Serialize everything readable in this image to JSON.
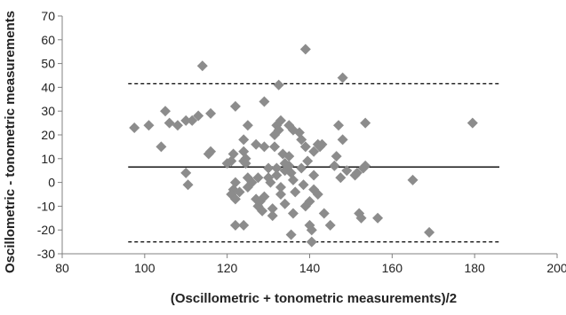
{
  "chart_data": {
    "type": "scatter",
    "title": "",
    "xlabel": "(Oscillometric + tonometric measurements)/2",
    "ylabel": "Oscillometric - tonometric measurements",
    "xlim": [
      80,
      200
    ],
    "ylim": [
      -30,
      70
    ],
    "xticks": [
      80,
      100,
      120,
      140,
      160,
      180,
      200
    ],
    "yticks": [
      -30,
      -20,
      -10,
      0,
      10,
      20,
      30,
      40,
      50,
      60,
      70
    ],
    "grid": false,
    "legend": "none",
    "marker": "diamond",
    "colors": {
      "marker": "#8c8c8c",
      "line": "#000000",
      "axis": "#808080"
    },
    "reference_lines": [
      {
        "kind": "mean",
        "y": 6.5,
        "x_range": [
          96,
          186
        ],
        "style": "solid"
      },
      {
        "kind": "upper-limit",
        "y": 41.5,
        "x_range": [
          96,
          186
        ],
        "style": "dashed"
      },
      {
        "kind": "lower-limit",
        "y": -25,
        "x_range": [
          96,
          186
        ],
        "style": "dashed"
      }
    ],
    "points": [
      [
        97.5,
        23
      ],
      [
        101,
        24
      ],
      [
        104,
        15
      ],
      [
        105,
        30
      ],
      [
        106,
        25
      ],
      [
        108,
        24
      ],
      [
        110,
        26
      ],
      [
        110,
        4
      ],
      [
        110.5,
        -1
      ],
      [
        111.5,
        26
      ],
      [
        113,
        28
      ],
      [
        114,
        49
      ],
      [
        115.5,
        12
      ],
      [
        116,
        13
      ],
      [
        116,
        29
      ],
      [
        120,
        8
      ],
      [
        121,
        9
      ],
      [
        121.5,
        12
      ],
      [
        122,
        32
      ],
      [
        122,
        0
      ],
      [
        121.5,
        -3
      ],
      [
        121,
        -5
      ],
      [
        122,
        -7
      ],
      [
        123,
        -4
      ],
      [
        122,
        -18
      ],
      [
        124,
        -18
      ],
      [
        124,
        18
      ],
      [
        125,
        24
      ],
      [
        124,
        13
      ],
      [
        124.5,
        10
      ],
      [
        124,
        9
      ],
      [
        124.5,
        8
      ],
      [
        125,
        2
      ],
      [
        125,
        -2
      ],
      [
        126,
        0
      ],
      [
        127,
        16
      ],
      [
        127.5,
        2
      ],
      [
        127,
        -7
      ],
      [
        127.5,
        -10
      ],
      [
        128,
        -8
      ],
      [
        128.5,
        -12
      ],
      [
        129,
        15
      ],
      [
        129,
        34
      ],
      [
        129,
        -6
      ],
      [
        130,
        6
      ],
      [
        130,
        2
      ],
      [
        130.5,
        0
      ],
      [
        131,
        -11
      ],
      [
        131,
        -14
      ],
      [
        131.5,
        20
      ],
      [
        131.5,
        15
      ],
      [
        132,
        24
      ],
      [
        132,
        6
      ],
      [
        132,
        3
      ],
      [
        132.5,
        41
      ],
      [
        132.5,
        22
      ],
      [
        133,
        26
      ],
      [
        133,
        -2
      ],
      [
        133,
        -5
      ],
      [
        133.5,
        12
      ],
      [
        134,
        8
      ],
      [
        134,
        5
      ],
      [
        134,
        -9
      ],
      [
        135,
        24
      ],
      [
        135,
        11
      ],
      [
        135,
        7
      ],
      [
        135.5,
        4
      ],
      [
        136,
        1
      ],
      [
        136,
        22
      ],
      [
        136.5,
        -4
      ],
      [
        136,
        -13
      ],
      [
        135.5,
        -22
      ],
      [
        137.5,
        21
      ],
      [
        138,
        18
      ],
      [
        138,
        6
      ],
      [
        138.5,
        -1
      ],
      [
        139,
        -10
      ],
      [
        139,
        56
      ],
      [
        139,
        15
      ],
      [
        139.5,
        9
      ],
      [
        140,
        -8
      ],
      [
        140,
        -18
      ],
      [
        140.5,
        -20
      ],
      [
        140.5,
        -25
      ],
      [
        141,
        13
      ],
      [
        141,
        3
      ],
      [
        141,
        -3
      ],
      [
        142,
        -5
      ],
      [
        142,
        16
      ],
      [
        142.5,
        15
      ],
      [
        143,
        16
      ],
      [
        143.5,
        -13
      ],
      [
        145,
        -18
      ],
      [
        146,
        7
      ],
      [
        146.5,
        11
      ],
      [
        147,
        24
      ],
      [
        147.5,
        2
      ],
      [
        148,
        44
      ],
      [
        148,
        18
      ],
      [
        149,
        5
      ],
      [
        151,
        3
      ],
      [
        151.5,
        4
      ],
      [
        152,
        -13
      ],
      [
        152.5,
        -15
      ],
      [
        153,
        6
      ],
      [
        153.5,
        7
      ],
      [
        153.5,
        25
      ],
      [
        156.5,
        -15
      ],
      [
        165,
        1
      ],
      [
        169,
        -21
      ],
      [
        179.5,
        25
      ]
    ]
  }
}
